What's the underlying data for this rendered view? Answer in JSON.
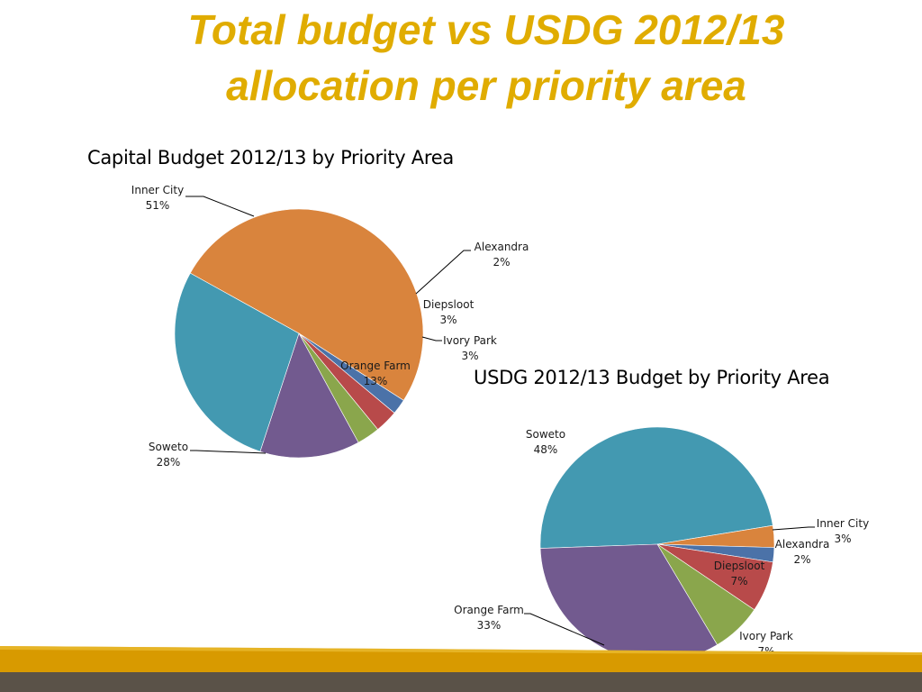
{
  "slide": {
    "title_line1": "Total budget vs USDG 2012/13",
    "title_line2": "allocation per priority area",
    "colors": {
      "title": "#e0ac00",
      "footer_gold": "#d89a00",
      "footer_gray": "#5a5248"
    }
  },
  "chart_data": [
    {
      "type": "pie",
      "title": "Capital Budget 2012/13 by Priority Area",
      "categories": [
        "Inner City",
        "Alexandra",
        "Diepsloot",
        "Ivory Park",
        "Orange Farm",
        "Soweto"
      ],
      "values": [
        51,
        2,
        3,
        3,
        13,
        28
      ],
      "labels": [
        "51%",
        "2%",
        "3%",
        "3%",
        "13%",
        "28%"
      ],
      "colors": [
        "#d9843d",
        "#4b72a8",
        "#b84a4a",
        "#8aa64c",
        "#725a8f",
        "#4399b1"
      ],
      "legend": "none"
    },
    {
      "type": "pie",
      "title": "USDG 2012/13 Budget by Priority Area",
      "categories": [
        "Soweto",
        "Inner City",
        "Alexandra",
        "Diepsloot",
        "Ivory Park",
        "Orange Farm"
      ],
      "values": [
        48,
        3,
        2,
        7,
        7,
        33
      ],
      "labels": [
        "48%",
        "3%",
        "2%",
        "7%",
        "7%",
        "33%"
      ],
      "colors": [
        "#4399b1",
        "#d9843d",
        "#4b72a8",
        "#b84a4a",
        "#8aa64c",
        "#725a8f"
      ],
      "legend": "none"
    }
  ]
}
